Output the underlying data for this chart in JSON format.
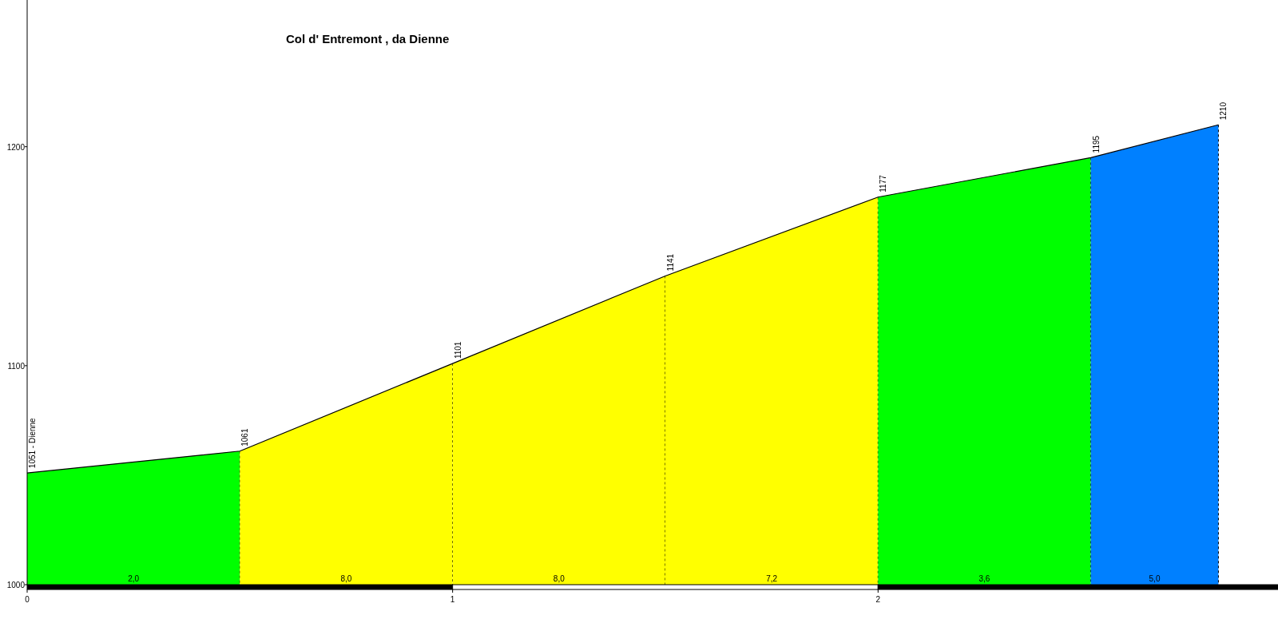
{
  "chart_data": {
    "type": "area",
    "title": "Col d' Entremont , da Dienne",
    "xlim": [
      0,
      2.94
    ],
    "xticks": [
      0,
      1,
      2
    ],
    "ylim": [
      1000,
      1267
    ],
    "yticks": [
      1000,
      1100,
      1200
    ],
    "grid": false,
    "series": [
      {
        "color": "#00ff00",
        "x": [
          0,
          0.5
        ],
        "values": [
          1051,
          1061
        ]
      },
      {
        "color": "#ffff00",
        "x": [
          0.5,
          1
        ],
        "values": [
          1061,
          1101
        ]
      },
      {
        "color": "#ffff00",
        "x": [
          1,
          1.5
        ],
        "values": [
          1101,
          1141
        ]
      },
      {
        "color": "#ffff00",
        "x": [
          1.5,
          2
        ],
        "values": [
          1141,
          1177
        ]
      },
      {
        "color": "#00ff00",
        "x": [
          2,
          2.5
        ],
        "values": [
          1177,
          1195
        ]
      },
      {
        "color": "#0080ff",
        "x": [
          2.5,
          2.8
        ],
        "values": [
          1195,
          1210
        ]
      },
      {
        "type": "line",
        "color": "#000000",
        "x": [
          0,
          0.5,
          1,
          1.5,
          2,
          2.5,
          2.8
        ],
        "values": [
          1051,
          1061,
          1101,
          1141,
          1177,
          1195,
          1210
        ],
        "value_labels": [
          "1051 - Dienne",
          "1061",
          "1101",
          "1141",
          "1177",
          "1195",
          "1210"
        ]
      }
    ],
    "annotations": [
      {
        "text": "2,0",
        "x": 0.25,
        "y": 1000
      },
      {
        "text": "8,0",
        "x": 0.75,
        "y": 1000
      },
      {
        "text": "8,0",
        "x": 1.25,
        "y": 1000
      },
      {
        "text": "7,2",
        "x": 1.75,
        "y": 1000
      },
      {
        "text": "3,6",
        "x": 2.25,
        "y": 1000
      },
      {
        "text": "5,0",
        "x": 2.65,
        "y": 1000
      }
    ]
  }
}
